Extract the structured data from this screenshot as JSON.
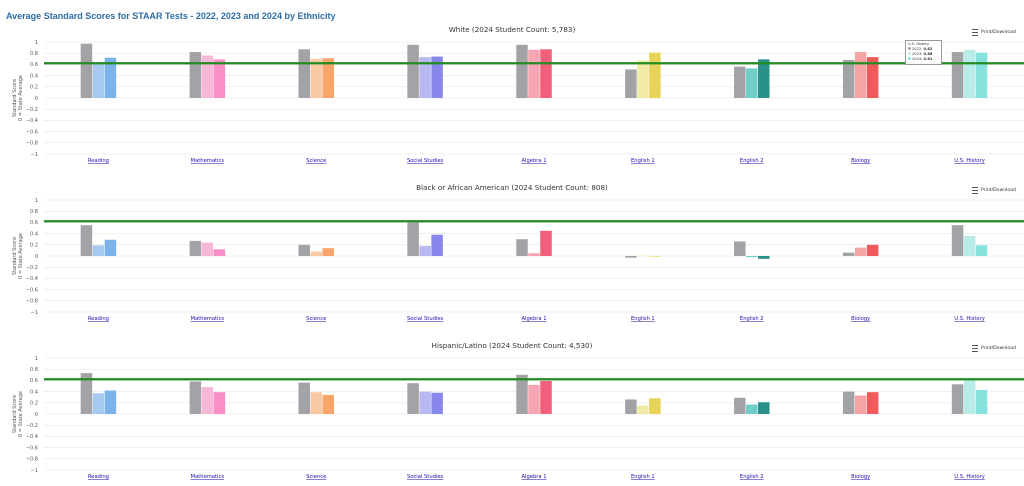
{
  "page": {
    "title": "Average Standard Scores for STAAR Tests - 2022, 2023 and 2024 by Ethnicity"
  },
  "print_label": "Print/Download",
  "y_axis": {
    "label_line1": "Standard Score",
    "label_line2": "0 = State Average",
    "ticks": [
      "1",
      "0.8",
      "0.6",
      "0.4",
      "0.2",
      "0",
      "−0.2",
      "−0.4",
      "−0.6",
      "−0.8",
      "−1"
    ]
  },
  "chart_data": [
    {
      "type": "bar",
      "title": "White (2024 Student Count: 5,783)",
      "categories": [
        "Reading",
        "Mathematics",
        "Science",
        "Social Studies",
        "Algebra 1",
        "English 1",
        "English 2",
        "Biology",
        "U.S. History"
      ],
      "series": [
        {
          "name": "2022",
          "values": [
            0.97,
            0.82,
            0.87,
            0.95,
            0.95,
            0.51,
            0.56,
            0.68,
            0.82
          ]
        },
        {
          "name": "2023",
          "values": [
            0.64,
            0.76,
            0.7,
            0.73,
            0.86,
            0.67,
            0.53,
            0.82,
            0.86
          ]
        },
        {
          "name": "2024",
          "values": [
            0.72,
            0.69,
            0.71,
            0.74,
            0.87,
            0.81,
            0.69,
            0.73,
            0.81
          ]
        }
      ],
      "reference_line": 0.62,
      "ylim": [
        -1,
        1
      ]
    },
    {
      "type": "bar",
      "title": "Black or African American (2024 Student Count: 808)",
      "categories": [
        "Reading",
        "Mathematics",
        "Science",
        "Social Studies",
        "Algebra 1",
        "English 1",
        "English 2",
        "Biology",
        "U.S. History"
      ],
      "series": [
        {
          "name": "2022",
          "values": [
            0.55,
            0.27,
            0.2,
            0.6,
            0.3,
            -0.03,
            0.26,
            0.06,
            0.55
          ]
        },
        {
          "name": "2023",
          "values": [
            0.19,
            0.24,
            0.08,
            0.18,
            0.05,
            0.01,
            -0.02,
            0.15,
            0.36
          ]
        },
        {
          "name": "2024",
          "values": [
            0.29,
            0.12,
            0.14,
            0.38,
            0.45,
            -0.01,
            -0.05,
            0.2,
            0.19
          ]
        }
      ],
      "reference_line": 0.62,
      "ylim": [
        -1,
        1
      ]
    },
    {
      "type": "bar",
      "title": "Hispanic/Latino (2024 Student Count: 4,530)",
      "categories": [
        "Reading",
        "Mathematics",
        "Science",
        "Social Studies",
        "Algebra 1",
        "English 1",
        "English 2",
        "Biology",
        "U.S. History"
      ],
      "series": [
        {
          "name": "2022",
          "values": [
            0.73,
            0.58,
            0.56,
            0.55,
            0.7,
            0.26,
            0.29,
            0.4,
            0.53
          ]
        },
        {
          "name": "2023",
          "values": [
            0.37,
            0.48,
            0.39,
            0.4,
            0.52,
            0.15,
            0.17,
            0.33,
            0.63
          ]
        },
        {
          "name": "2024",
          "values": [
            0.42,
            0.39,
            0.34,
            0.38,
            0.59,
            0.28,
            0.21,
            0.39,
            0.43
          ]
        }
      ],
      "reference_line": 0.62,
      "ylim": [
        -1,
        1
      ]
    }
  ],
  "colors": {
    "y2022": "#a3a3a7",
    "reference": "#228b22",
    "category_pairs": [
      [
        "#a6c9f0",
        "#7cb3ea"
      ],
      [
        "#f7b8d8",
        "#fa8fc8"
      ],
      [
        "#f9c9a4",
        "#f7a56b"
      ],
      [
        "#b8b8f2",
        "#8888ea"
      ],
      [
        "#f5a6b2",
        "#f15f7b"
      ],
      [
        "#f2eba6",
        "#e6d357"
      ],
      [
        "#6fcfc7",
        "#2a908a"
      ],
      [
        "#f6a3a3",
        "#ef5b5b"
      ],
      [
        "#b9ece8",
        "#87e1dc"
      ]
    ]
  },
  "tooltip": {
    "header": "U.S. History",
    "rows": [
      {
        "label": "2022:",
        "value": "0.82",
        "color": "#a3a3a7"
      },
      {
        "label": "2023:",
        "value": "0.86",
        "color": "#b9ece8"
      },
      {
        "label": "2024:",
        "value": "0.81",
        "color": "#87e1dc"
      }
    ]
  }
}
